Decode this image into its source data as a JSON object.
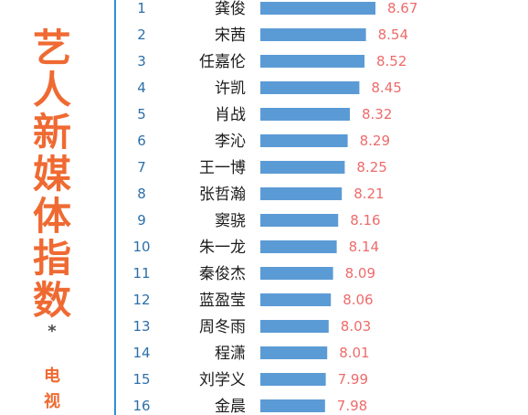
{
  "sidebar": {
    "title_chars": [
      "艺",
      "人",
      "新",
      "媒",
      "体",
      "指",
      "数"
    ],
    "star": "*",
    "sub_chars": [
      "电",
      "视"
    ]
  },
  "colors": {
    "title": "#ef6a32",
    "bar": "#5b9bd5",
    "value_label": "#ee6b6b",
    "rank": "#2c6fa9",
    "divider": "#2f8fd8"
  },
  "chart_data": {
    "type": "bar",
    "orientation": "horizontal",
    "ranks": [
      "1",
      "2",
      "3",
      "4",
      "5",
      "6",
      "7",
      "8",
      "9",
      "10",
      "11",
      "12",
      "13",
      "14",
      "15",
      "16"
    ],
    "categories": [
      "龚俊",
      "宋茜",
      "任嘉伦",
      "许凯",
      "肖战",
      "李沁",
      "王一博",
      "张哲瀚",
      "窦骁",
      "朱一龙",
      "秦俊杰",
      "蓝盈莹",
      "周冬雨",
      "程潇",
      "刘学义",
      "金晨"
    ],
    "values": [
      8.67,
      8.54,
      8.52,
      8.45,
      8.32,
      8.29,
      8.25,
      8.21,
      8.16,
      8.14,
      8.09,
      8.06,
      8.03,
      8.01,
      7.99,
      7.98
    ],
    "value_labels": [
      "8.67",
      "8.54",
      "8.52",
      "8.45",
      "8.32",
      "8.29",
      "8.25",
      "8.21",
      "8.16",
      "8.14",
      "8.09",
      "8.06",
      "8.03",
      "8.01",
      "7.99",
      "7.98"
    ],
    "grid": false,
    "legend": "none"
  }
}
